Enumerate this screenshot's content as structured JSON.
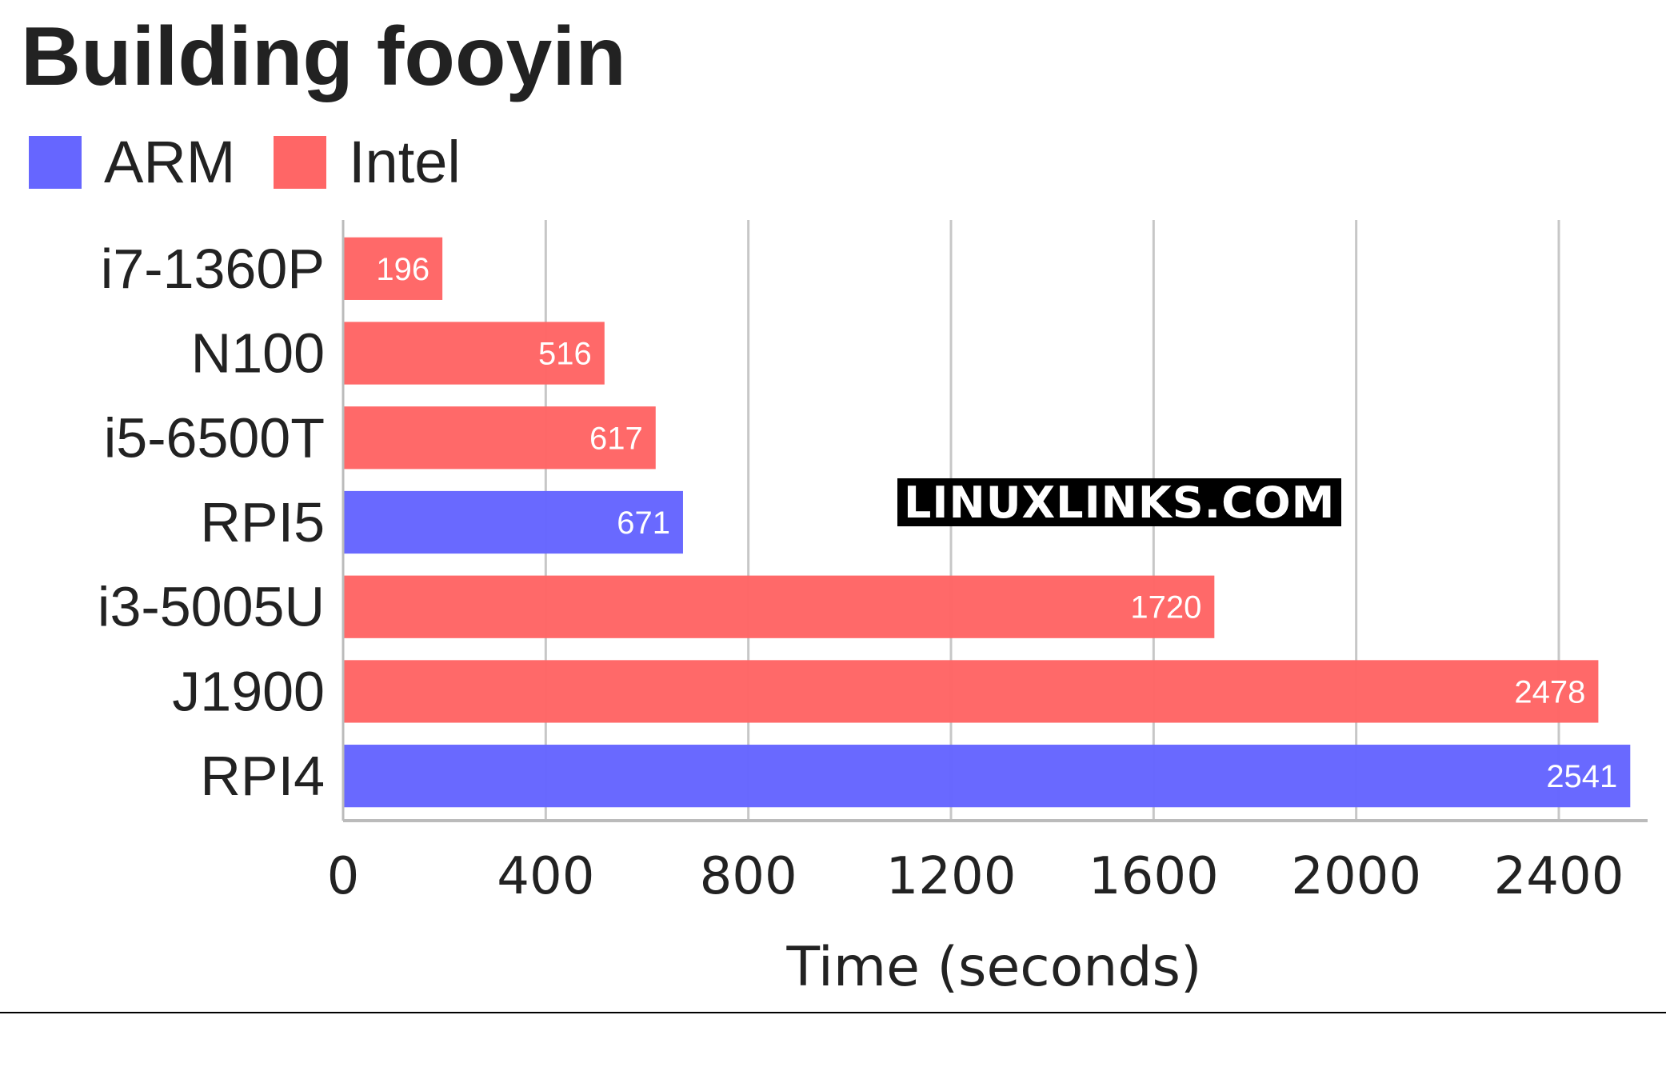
{
  "chart_data": {
    "type": "bar",
    "orientation": "horizontal",
    "title": "Building fooyin",
    "xlabel": "Time (seconds)",
    "ylabel": "",
    "xlim": [
      0,
      2560
    ],
    "xticks": [
      0,
      400,
      800,
      1200,
      1600,
      2000,
      2400
    ],
    "grid": true,
    "legend_position": "top-left",
    "legend": [
      {
        "name": "ARM",
        "color": "#6666ff"
      },
      {
        "name": "Intel",
        "color": "#ff6666"
      }
    ],
    "categories": [
      "i7-1360P",
      "N100",
      "i5-6500T",
      "RPI5",
      "i3-5005U",
      "J1900",
      "RPI4"
    ],
    "values": [
      196,
      516,
      617,
      671,
      1720,
      2478,
      2541
    ],
    "groups": [
      "Intel",
      "Intel",
      "Intel",
      "ARM",
      "Intel",
      "Intel",
      "ARM"
    ],
    "data_labels": [
      "196",
      "516",
      "617",
      "671",
      "1720",
      "2478",
      "2541"
    ]
  },
  "watermark": "LINUXLINKS.COM"
}
